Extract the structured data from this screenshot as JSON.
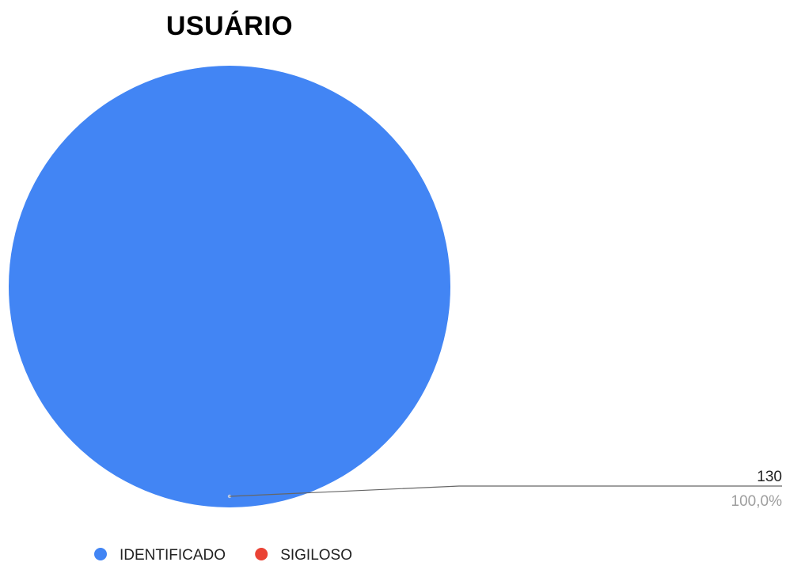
{
  "chart_data": {
    "type": "pie",
    "title": "USUÁRIO",
    "slices": [
      {
        "label": "IDENTIFICADO",
        "value": 130,
        "percent_label": "100,0%",
        "color": "#4285f4"
      },
      {
        "label": "SIGILOSO",
        "value": 0,
        "color": "#ea4335"
      }
    ],
    "legend_position": "bottom-left"
  }
}
